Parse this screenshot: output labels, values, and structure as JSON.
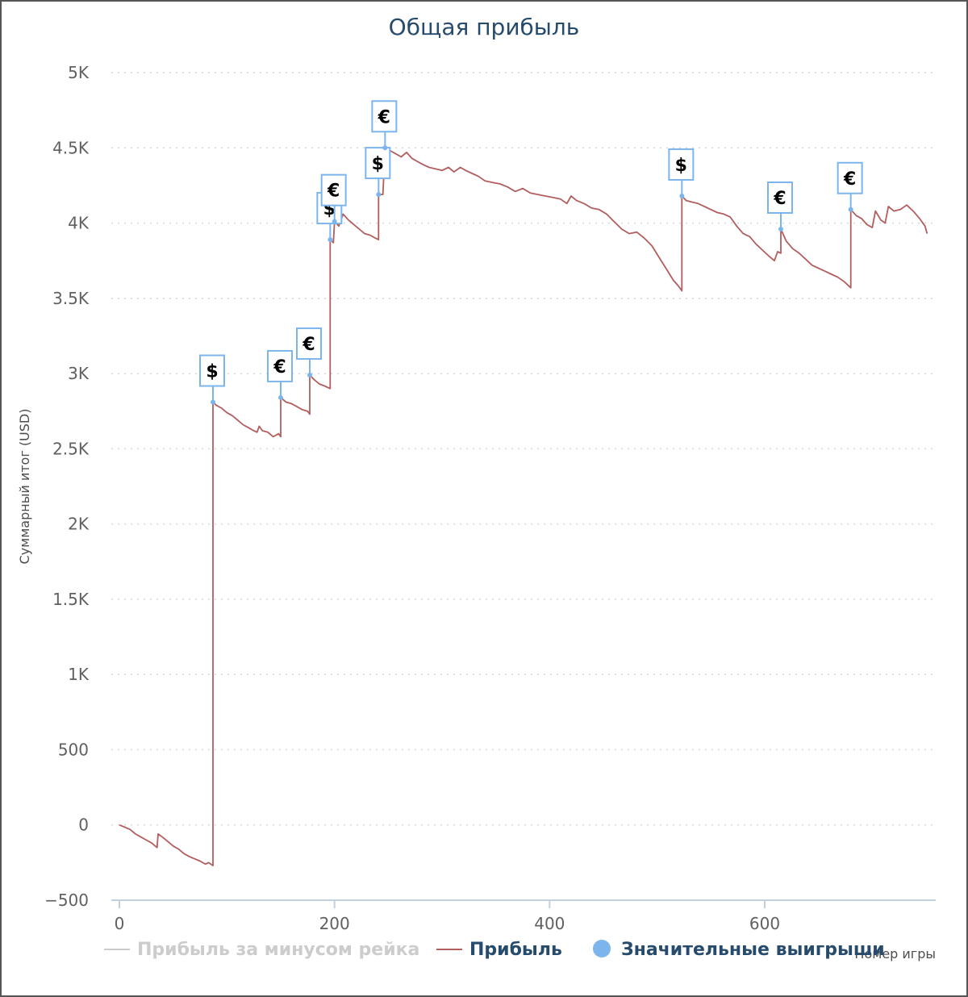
{
  "chart_data": {
    "type": "line",
    "title": "Общая прибыль",
    "xlabel": "Номер игры",
    "ylabel": "Суммарный итог (USD)",
    "xlim": [
      0,
      760
    ],
    "ylim": [
      -500,
      5000
    ],
    "x_ticks": [
      0,
      200,
      400,
      600
    ],
    "x_tick_labels": [
      "0",
      "200",
      "400",
      "600"
    ],
    "y_ticks": [
      -500,
      0,
      500,
      1000,
      1500,
      2000,
      2500,
      3000,
      3500,
      4000,
      4500,
      5000
    ],
    "y_tick_labels": [
      "−500",
      "0",
      "500",
      "1K",
      "1.5K",
      "2K",
      "2.5K",
      "3K",
      "3.5K",
      "4K",
      "4.5K",
      "5K"
    ],
    "grid": "horizontal dotted",
    "legend_position": "bottom",
    "legend": [
      {
        "label": "Прибыль за минусом рейка",
        "color": "#cccccc",
        "marker": "line",
        "text_color": "#cccccc"
      },
      {
        "label": "Прибыль",
        "color": "#b25e5e",
        "marker": "line",
        "text_color": "#274b6d"
      },
      {
        "label": "Значительные выигрыши",
        "color": "#7cb5ec",
        "marker": "circle",
        "text_color": "#274b6d"
      }
    ],
    "series": [
      {
        "name": "Прибыль",
        "color": "#b25e5e",
        "points": [
          [
            0,
            0
          ],
          [
            5,
            -15
          ],
          [
            10,
            -30
          ],
          [
            15,
            -60
          ],
          [
            20,
            -80
          ],
          [
            25,
            -100
          ],
          [
            30,
            -120
          ],
          [
            35,
            -150
          ],
          [
            36,
            -60
          ],
          [
            40,
            -80
          ],
          [
            45,
            -110
          ],
          [
            50,
            -140
          ],
          [
            55,
            -160
          ],
          [
            60,
            -190
          ],
          [
            65,
            -210
          ],
          [
            70,
            -225
          ],
          [
            75,
            -240
          ],
          [
            80,
            -260
          ],
          [
            83,
            -250
          ],
          [
            87,
            -270
          ],
          [
            87,
            2810
          ],
          [
            90,
            2790
          ],
          [
            95,
            2770
          ],
          [
            100,
            2740
          ],
          [
            105,
            2720
          ],
          [
            110,
            2690
          ],
          [
            115,
            2660
          ],
          [
            120,
            2640
          ],
          [
            125,
            2620
          ],
          [
            128,
            2610
          ],
          [
            130,
            2650
          ],
          [
            133,
            2620
          ],
          [
            138,
            2610
          ],
          [
            143,
            2580
          ],
          [
            148,
            2600
          ],
          [
            150,
            2580
          ],
          [
            150,
            2840
          ],
          [
            155,
            2810
          ],
          [
            160,
            2800
          ],
          [
            165,
            2780
          ],
          [
            170,
            2760
          ],
          [
            175,
            2750
          ],
          [
            177,
            2730
          ],
          [
            177,
            2990
          ],
          [
            181,
            2960
          ],
          [
            186,
            2930
          ],
          [
            190,
            2920
          ],
          [
            196,
            2900
          ],
          [
            196,
            3890
          ],
          [
            199,
            3870
          ],
          [
            200,
            4010
          ],
          [
            204,
            3980
          ],
          [
            208,
            4060
          ],
          [
            213,
            4020
          ],
          [
            218,
            3990
          ],
          [
            223,
            3960
          ],
          [
            228,
            3930
          ],
          [
            233,
            3920
          ],
          [
            238,
            3900
          ],
          [
            241,
            3890
          ],
          [
            241,
            4190
          ],
          [
            245,
            4190
          ],
          [
            247,
            4500
          ],
          [
            252,
            4480
          ],
          [
            257,
            4460
          ],
          [
            262,
            4440
          ],
          [
            267,
            4470
          ],
          [
            272,
            4430
          ],
          [
            277,
            4410
          ],
          [
            282,
            4390
          ],
          [
            288,
            4370
          ],
          [
            294,
            4360
          ],
          [
            300,
            4350
          ],
          [
            306,
            4370
          ],
          [
            311,
            4340
          ],
          [
            317,
            4370
          ],
          [
            322,
            4350
          ],
          [
            328,
            4330
          ],
          [
            334,
            4310
          ],
          [
            340,
            4280
          ],
          [
            347,
            4270
          ],
          [
            354,
            4260
          ],
          [
            361,
            4240
          ],
          [
            368,
            4210
          ],
          [
            375,
            4230
          ],
          [
            382,
            4200
          ],
          [
            389,
            4190
          ],
          [
            396,
            4180
          ],
          [
            403,
            4170
          ],
          [
            410,
            4160
          ],
          [
            416,
            4130
          ],
          [
            420,
            4180
          ],
          [
            425,
            4150
          ],
          [
            432,
            4130
          ],
          [
            439,
            4100
          ],
          [
            446,
            4090
          ],
          [
            453,
            4060
          ],
          [
            460,
            4010
          ],
          [
            467,
            3960
          ],
          [
            474,
            3930
          ],
          [
            481,
            3940
          ],
          [
            488,
            3900
          ],
          [
            495,
            3850
          ],
          [
            502,
            3770
          ],
          [
            509,
            3690
          ],
          [
            515,
            3620
          ],
          [
            520,
            3580
          ],
          [
            523,
            3550
          ],
          [
            523,
            4180
          ],
          [
            527,
            4150
          ],
          [
            532,
            4140
          ],
          [
            538,
            4130
          ],
          [
            544,
            4110
          ],
          [
            550,
            4090
          ],
          [
            556,
            4070
          ],
          [
            562,
            4060
          ],
          [
            568,
            4040
          ],
          [
            574,
            3980
          ],
          [
            580,
            3930
          ],
          [
            586,
            3910
          ],
          [
            592,
            3860
          ],
          [
            598,
            3820
          ],
          [
            604,
            3780
          ],
          [
            609,
            3750
          ],
          [
            612,
            3810
          ],
          [
            615,
            3800
          ],
          [
            615,
            3960
          ],
          [
            620,
            3880
          ],
          [
            626,
            3830
          ],
          [
            632,
            3800
          ],
          [
            638,
            3760
          ],
          [
            644,
            3720
          ],
          [
            650,
            3700
          ],
          [
            656,
            3680
          ],
          [
            662,
            3660
          ],
          [
            668,
            3640
          ],
          [
            674,
            3610
          ],
          [
            680,
            3570
          ],
          [
            680,
            4090
          ],
          [
            685,
            4050
          ],
          [
            690,
            4030
          ],
          [
            695,
            3990
          ],
          [
            700,
            3970
          ],
          [
            703,
            4080
          ],
          [
            708,
            4020
          ],
          [
            712,
            4000
          ],
          [
            715,
            4110
          ],
          [
            720,
            4080
          ],
          [
            726,
            4090
          ],
          [
            732,
            4120
          ],
          [
            738,
            4080
          ],
          [
            744,
            4030
          ],
          [
            749,
            3980
          ],
          [
            751,
            3930
          ]
        ]
      }
    ],
    "flags": [
      {
        "x": 87,
        "y": 2810,
        "symbol": "$"
      },
      {
        "x": 150,
        "y": 2840,
        "symbol": "€"
      },
      {
        "x": 177,
        "y": 2990,
        "symbol": "€"
      },
      {
        "x": 196,
        "y": 3890,
        "symbol": "$"
      },
      {
        "x": 200,
        "y": 4010,
        "symbol": "€"
      },
      {
        "x": 241,
        "y": 4190,
        "symbol": "$"
      },
      {
        "x": 247,
        "y": 4500,
        "symbol": "€"
      },
      {
        "x": 523,
        "y": 4180,
        "symbol": "$"
      },
      {
        "x": 615,
        "y": 3960,
        "symbol": "€"
      },
      {
        "x": 680,
        "y": 4090,
        "symbol": "€"
      }
    ]
  }
}
